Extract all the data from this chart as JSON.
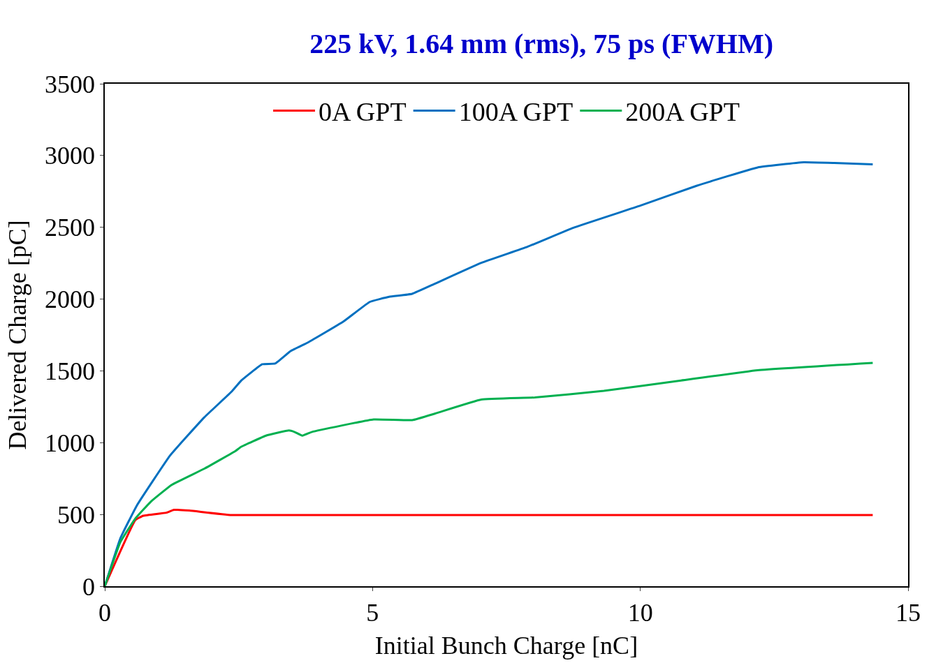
{
  "chart_data": {
    "type": "line",
    "title": "225 kV, 1.64 mm (rms), 75 ps (FWHM)",
    "xlabel": "Initial Bunch Charge [nC]",
    "ylabel": "Delivered Charge [pC]",
    "xlim": [
      0,
      15
    ],
    "xticks": [
      0,
      5,
      10,
      15
    ],
    "ylim": [
      0,
      3500
    ],
    "yticks": [
      0,
      500,
      1000,
      1500,
      2000,
      2500,
      3000,
      3500
    ],
    "legend": "top",
    "marker": "none",
    "line_style": "solid",
    "series": [
      {
        "name": "0A GPT",
        "color": "#ff0000",
        "x": [
          0,
          0.57,
          0.72,
          1.15,
          1.29,
          1.58,
          2.37,
          14.34
        ],
        "values": [
          0,
          461,
          491,
          512,
          532,
          527,
          496,
          496
        ]
      },
      {
        "name": "100A GPT",
        "color": "#0070c0",
        "x": [
          0,
          0.29,
          0.6,
          1.22,
          1.86,
          2.37,
          2.55,
          2.94,
          3.18,
          3.47,
          3.8,
          4.45,
          4.95,
          5.31,
          5.74,
          6.17,
          7.03,
          7.89,
          8.75,
          10.0,
          11.05,
          12.19,
          13.05,
          13.62,
          14.34
        ],
        "values": [
          0,
          333,
          563,
          911,
          1177,
          1356,
          1433,
          1546,
          1551,
          1638,
          1699,
          1842,
          1981,
          2016,
          2037,
          2108,
          2252,
          2364,
          2497,
          2651,
          2789,
          2917,
          2953,
          2948,
          2938
        ]
      },
      {
        "name": "200A GPT",
        "color": "#00b050",
        "x": [
          0,
          0.29,
          0.57,
          0.86,
          1.25,
          1.86,
          2.44,
          2.55,
          3.01,
          3.44,
          3.54,
          3.69,
          3.87,
          5.02,
          5.74,
          6.17,
          7.03,
          8.03,
          9.32,
          10.76,
          12.19,
          14.34
        ],
        "values": [
          0,
          307,
          471,
          589,
          706,
          819,
          942,
          972,
          1049,
          1085,
          1075,
          1049,
          1075,
          1162,
          1157,
          1203,
          1300,
          1315,
          1361,
          1433,
          1505,
          1556
        ]
      }
    ]
  }
}
